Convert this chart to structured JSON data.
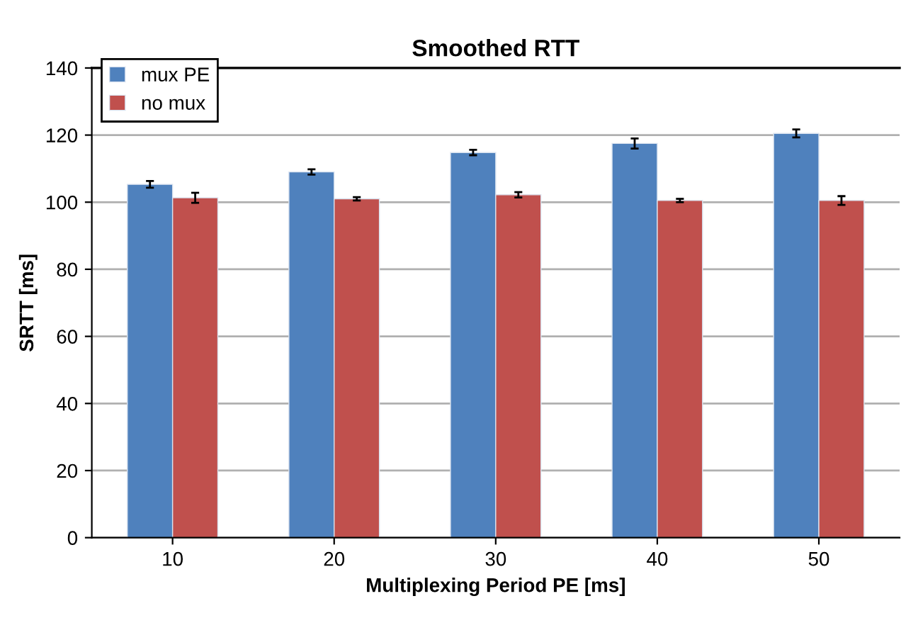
{
  "chart_data": {
    "type": "bar",
    "title": "Smoothed RTT",
    "xlabel": "Multiplexing Period PE [ms]",
    "ylabel": "SRTT [ms]",
    "categories": [
      "10",
      "20",
      "30",
      "40",
      "50"
    ],
    "series": [
      {
        "name": "mux PE",
        "color": "#4f81bd",
        "values": [
          105.3,
          109,
          114.8,
          117.5,
          120.5
        ],
        "errors": [
          1,
          0.8,
          0.8,
          1.5,
          1.2
        ]
      },
      {
        "name": "no mux",
        "color": "#c0504d",
        "values": [
          101.3,
          101,
          102.2,
          100.5,
          100.5
        ],
        "errors": [
          1.5,
          0.5,
          0.8,
          0.5,
          1.3
        ]
      }
    ],
    "ylim": [
      0,
      140
    ],
    "yticks": [
      0,
      20,
      40,
      60,
      80,
      100,
      120,
      140
    ],
    "grid": "y",
    "legend": "top left"
  }
}
